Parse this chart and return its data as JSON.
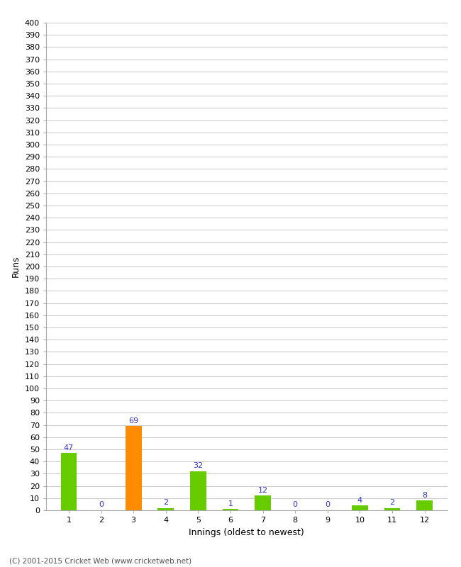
{
  "xlabel": "Innings (oldest to newest)",
  "ylabel": "Runs",
  "categories": [
    "1",
    "2",
    "3",
    "4",
    "5",
    "6",
    "7",
    "8",
    "9",
    "10",
    "11",
    "12"
  ],
  "values": [
    47,
    0,
    69,
    2,
    32,
    1,
    12,
    0,
    0,
    4,
    2,
    8
  ],
  "bar_colors": [
    "#66cc00",
    "#66cc00",
    "#ff8c00",
    "#66cc00",
    "#66cc00",
    "#66cc00",
    "#66cc00",
    "#66cc00",
    "#66cc00",
    "#66cc00",
    "#66cc00",
    "#66cc00"
  ],
  "ylim": [
    0,
    400
  ],
  "ytick_step": 10,
  "label_color": "#3333cc",
  "background_color": "#ffffff",
  "grid_color": "#cccccc",
  "footer": "(C) 2001-2015 Cricket Web (www.cricketweb.net)"
}
